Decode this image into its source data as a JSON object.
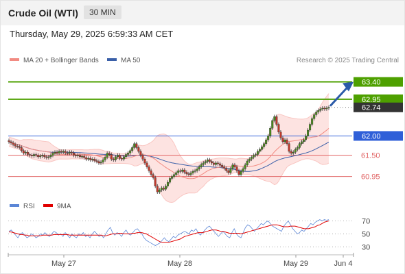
{
  "header": {
    "title": "Crude Oil (WTI)",
    "timeframe": "30 MIN"
  },
  "timestamp": "Thursday, May 29, 2025 6:59:33 AM CET",
  "legend_main": [
    {
      "label": "MA 20 + Bollinger Bands",
      "color": "#f28b82"
    },
    {
      "label": "MA 50",
      "color": "#3a5fa8"
    }
  ],
  "watermark": "Research © 2025 Trading Central",
  "legend_rsi": [
    {
      "label": "RSI",
      "color": "#5b86d6"
    },
    {
      "label": "9MA",
      "color": "#e00000"
    }
  ],
  "colors": {
    "resistance": "#4ea000",
    "pivot": "#2f5fd8",
    "support": "#e06060",
    "current": "#333333",
    "arrow": "#2a5aa8",
    "candle_up": "#4a8c1c",
    "candle_down": "#c0392b"
  },
  "chart_data": {
    "type": "candlestick",
    "instrument": "Crude Oil (WTI)",
    "timeframe": "30 MIN",
    "ylim": [
      60.5,
      63.8
    ],
    "x_ticks": [
      "May 27",
      "May 28",
      "May 29",
      "Jun 4"
    ],
    "levels": [
      {
        "label": "63.40",
        "value": 63.4,
        "type": "resistance"
      },
      {
        "label": "62.95",
        "value": 62.95,
        "type": "resistance"
      },
      {
        "label": "62.74",
        "value": 62.74,
        "type": "current"
      },
      {
        "label": "62.00",
        "value": 62.0,
        "type": "pivot"
      },
      {
        "label": "61.50",
        "value": 61.5,
        "type": "support"
      },
      {
        "label": "60.95",
        "value": 60.95,
        "type": "support"
      }
    ],
    "close": [
      61.85,
      61.82,
      61.78,
      61.74,
      61.73,
      61.7,
      61.62,
      61.56,
      61.58,
      61.52,
      61.5,
      61.48,
      61.52,
      61.5,
      61.46,
      61.48,
      61.5,
      61.46,
      61.44,
      61.46,
      61.5,
      61.55,
      61.58,
      61.56,
      61.6,
      61.58,
      61.6,
      61.56,
      61.55,
      61.58,
      61.56,
      61.5,
      61.48,
      61.5,
      61.46,
      61.47,
      61.44,
      61.4,
      61.42,
      61.38,
      61.4,
      61.36,
      61.34,
      61.3,
      61.32,
      61.38,
      61.45,
      61.55,
      61.52,
      61.4,
      61.38,
      61.46,
      61.5,
      61.42,
      61.4,
      61.46,
      61.52,
      61.56,
      61.62,
      61.7,
      61.8,
      61.7,
      61.6,
      61.5,
      61.4,
      61.3,
      61.2,
      61.1,
      61.0,
      60.92,
      60.7,
      60.55,
      60.6,
      60.65,
      60.62,
      60.7,
      60.8,
      60.9,
      60.95,
      61.0,
      61.05,
      61.1,
      61.08,
      61.12,
      61.06,
      61.02,
      61.0,
      61.04,
      61.08,
      61.1,
      61.14,
      61.2,
      61.26,
      61.3,
      61.34,
      61.38,
      61.34,
      61.3,
      61.26,
      61.3,
      61.28,
      61.24,
      61.2,
      61.16,
      61.1,
      61.05,
      61.15,
      61.25,
      61.2,
      61.1,
      61.0,
      61.08,
      61.15,
      61.25,
      61.35,
      61.4,
      61.45,
      61.5,
      61.52,
      61.6,
      61.65,
      61.72,
      61.8,
      61.9,
      62.0,
      62.2,
      62.4,
      62.5,
      62.3,
      62.1,
      61.95,
      61.85,
      61.9,
      61.8,
      61.6,
      61.55,
      61.58,
      61.65,
      61.7,
      61.8,
      61.85,
      61.9,
      62.0,
      62.15,
      62.3,
      62.45,
      62.55,
      62.62,
      62.66,
      62.7,
      62.72,
      62.7,
      62.72,
      62.74
    ],
    "rsi": {
      "y_ticks": [
        70,
        50,
        30
      ],
      "ylim": [
        22,
        80
      ],
      "rsi": [
        54,
        56,
        52,
        48,
        44,
        50,
        52,
        48,
        44,
        46,
        50,
        48,
        44,
        46,
        50,
        48,
        52,
        48,
        46,
        50,
        54,
        52,
        48,
        50,
        46,
        52,
        48,
        44,
        50,
        46,
        44,
        50,
        48,
        52,
        46,
        48,
        44,
        50,
        54,
        50,
        46,
        48,
        44,
        50,
        56,
        60,
        52,
        48,
        52,
        50,
        46,
        52,
        56,
        50,
        48,
        52,
        56,
        58,
        54,
        50,
        44,
        40,
        38,
        36,
        34,
        32,
        34,
        36,
        40,
        44,
        40,
        38,
        42,
        46,
        44,
        48,
        50,
        52,
        54,
        52,
        50,
        56,
        54,
        58,
        52,
        48,
        52,
        56,
        60,
        62,
        58,
        54,
        50,
        46,
        50,
        54,
        50,
        46,
        44,
        52,
        58,
        50,
        46,
        44,
        52,
        60,
        64,
        62,
        58,
        54,
        58,
        62,
        66,
        64,
        68,
        70,
        66,
        62,
        60,
        58,
        56,
        54,
        62,
        66,
        70,
        64,
        58,
        54,
        50,
        52,
        56,
        54,
        58,
        62,
        66,
        64,
        68,
        70,
        72,
        70,
        72,
        71,
        72
      ],
      "ma": [
        53,
        53,
        52,
        51,
        50,
        49,
        49,
        48,
        48,
        47,
        47,
        47,
        47,
        47,
        47,
        48,
        48,
        48,
        48,
        48,
        49,
        49,
        49,
        49,
        49,
        49,
        49,
        48,
        48,
        48,
        48,
        48,
        48,
        48,
        48,
        48,
        48,
        48,
        48,
        48,
        48,
        48,
        47,
        47,
        48,
        49,
        50,
        50,
        50,
        51,
        51,
        50,
        50,
        50,
        50,
        51,
        51,
        52,
        52,
        52,
        51,
        50,
        48,
        46,
        44,
        42,
        40,
        38,
        37,
        37,
        37,
        37,
        38,
        39,
        40,
        41,
        42,
        44,
        46,
        47,
        48,
        49,
        50,
        51,
        52,
        52,
        52,
        53,
        54,
        55,
        56,
        56,
        56,
        55,
        54,
        54,
        53,
        52,
        51,
        51,
        51,
        51,
        51,
        50,
        51,
        52,
        53,
        54,
        55,
        56,
        57,
        58,
        59,
        60,
        61,
        62,
        63,
        64,
        64,
        64,
        63,
        62,
        61,
        61,
        61,
        62,
        62,
        62,
        61,
        60,
        59,
        58,
        58,
        58,
        59,
        60,
        61,
        63,
        64,
        66,
        68,
        69,
        70
      ]
    }
  }
}
